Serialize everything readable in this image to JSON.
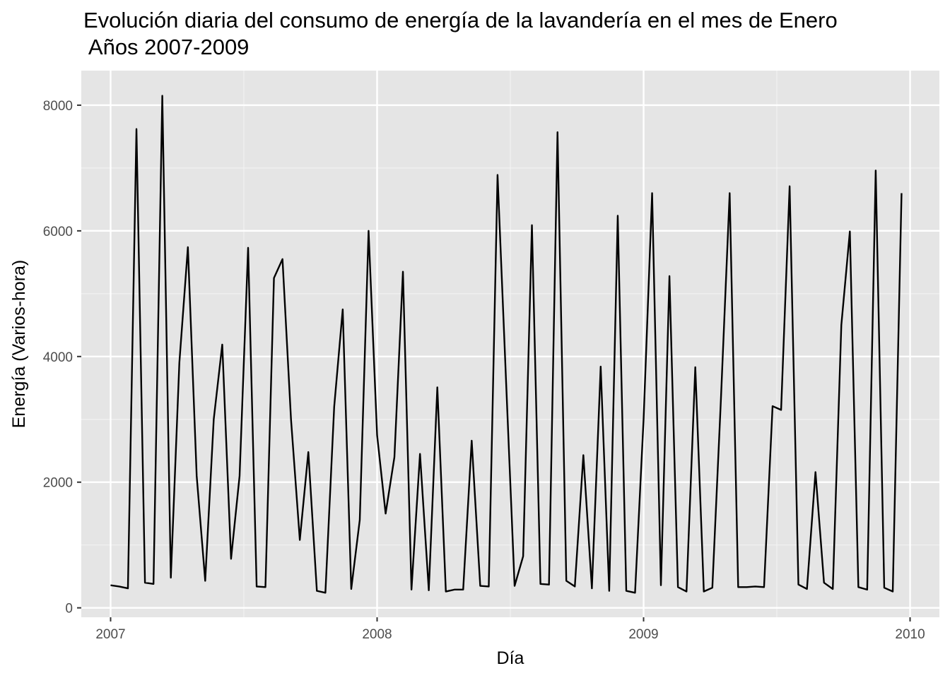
{
  "chart_data": {
    "type": "line",
    "title_line1": "Evolución diaria del consumo de energía de la lavandería en el mes de Enero",
    "title_line2": " Años 2007-2009",
    "xlabel": "Día",
    "ylabel": "Energía (Varios-hora)",
    "xlim": [
      2006.89,
      2010.11
    ],
    "ylim": [
      -150,
      8550
    ],
    "x_ticks": [
      2007,
      2008,
      2009,
      2010
    ],
    "x_tick_labels": [
      "2007",
      "2008",
      "2009",
      "2010"
    ],
    "y_ticks": [
      0,
      2000,
      4000,
      6000,
      8000
    ],
    "y_tick_labels": [
      "0",
      "2000",
      "4000",
      "6000",
      "8000"
    ],
    "grid": true,
    "line_color": "#000000",
    "panel_color": "#e5e5e5",
    "series": [
      {
        "x": [
          2007.0,
          2007.032,
          2007.065,
          2007.097,
          2007.129,
          2007.161,
          2007.194,
          2007.226,
          2007.258,
          2007.29,
          2007.323,
          2007.355,
          2007.387,
          2007.419,
          2007.452,
          2007.484,
          2007.516,
          2007.548,
          2007.581,
          2007.613,
          2007.645,
          2007.677,
          2007.71,
          2007.742,
          2007.774,
          2007.806,
          2007.839,
          2007.871,
          2007.903,
          2007.935,
          2007.968,
          2008.0,
          2008.032,
          2008.065,
          2008.097,
          2008.129,
          2008.161,
          2008.194,
          2008.226,
          2008.258,
          2008.29,
          2008.323,
          2008.355,
          2008.387,
          2008.419,
          2008.452,
          2008.484,
          2008.516,
          2008.548,
          2008.581,
          2008.613,
          2008.645,
          2008.677,
          2008.71,
          2008.742,
          2008.774,
          2008.806,
          2008.839,
          2008.871,
          2008.903,
          2008.935,
          2008.968,
          2009.0,
          2009.032,
          2009.065,
          2009.097,
          2009.129,
          2009.161,
          2009.194,
          2009.226,
          2009.258,
          2009.29,
          2009.323,
          2009.355,
          2009.387,
          2009.419,
          2009.452,
          2009.484,
          2009.516,
          2009.548,
          2009.581,
          2009.613,
          2009.645,
          2009.677,
          2009.71,
          2009.742,
          2009.774,
          2009.806,
          2009.839,
          2009.871,
          2009.903,
          2009.935,
          2009.968
        ],
        "y": [
          360,
          340,
          310,
          7620,
          400,
          380,
          8150,
          480,
          3900,
          5740,
          2100,
          430,
          3000,
          4190,
          780,
          2100,
          5730,
          340,
          330,
          5250,
          5550,
          3000,
          1080,
          2480,
          270,
          240,
          3200,
          4750,
          300,
          1400,
          6000,
          2750,
          1500,
          2400,
          5350,
          290,
          2450,
          280,
          3510,
          260,
          290,
          290,
          2660,
          350,
          340,
          6890,
          3600,
          350,
          820,
          6090,
          380,
          370,
          7570,
          430,
          340,
          2430,
          310,
          3840,
          270,
          6240,
          270,
          240,
          3000,
          6600,
          360,
          5280,
          330,
          260,
          3830,
          260,
          320,
          3300,
          6600,
          330,
          330,
          340,
          330,
          3210,
          3150,
          6710,
          370,
          300,
          2160,
          400,
          300,
          4500,
          5990,
          330,
          290,
          6960,
          320,
          260,
          6600
        ]
      }
    ]
  }
}
